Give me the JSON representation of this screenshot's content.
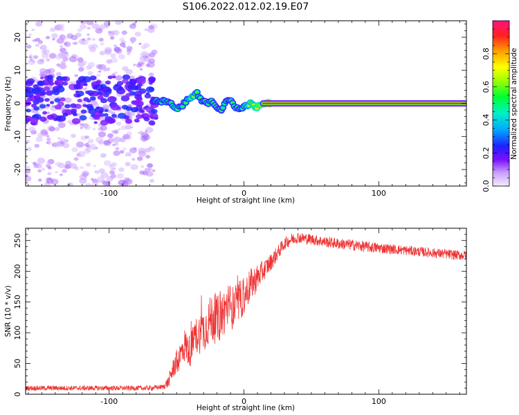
{
  "figure": {
    "title": "S106.2022.012.02.19.E07"
  },
  "chart_data": [
    {
      "type": "heatmap",
      "xlabel": "Height of straight line (km)",
      "ylabel": "Frequency (Hz)",
      "xlim": [
        -162,
        165
      ],
      "ylim": [
        -25,
        25
      ],
      "xticks": [
        -100,
        0,
        100
      ],
      "yticks": [
        -20,
        -10,
        0,
        10,
        20
      ],
      "colorbar": {
        "label": "Normalized spectral amplitude",
        "range": [
          0,
          1
        ],
        "ticks": [
          0.0,
          0.2,
          0.4,
          0.6,
          0.8
        ]
      },
      "signal_track": {
        "x": [
          -162,
          -150,
          -140,
          -130,
          -120,
          -110,
          -100,
          -90,
          -80,
          -70,
          -62,
          -58,
          -54,
          -50,
          -46,
          -42,
          -38,
          -35,
          -32,
          -28,
          -24,
          -20,
          -17,
          -14,
          -10,
          -6,
          -3,
          0,
          4,
          8,
          12,
          15,
          20,
          40,
          60,
          80,
          100,
          130,
          165
        ],
        "y": [
          1,
          2,
          -1,
          3,
          0,
          -2,
          1,
          3,
          -1,
          2,
          0,
          1,
          0,
          -2,
          -1,
          1,
          2,
          3,
          1,
          0,
          1,
          -1,
          -2,
          0,
          1,
          -1,
          -2,
          -1,
          0,
          -1,
          -1,
          0,
          0,
          0,
          0,
          0,
          0,
          0,
          0
        ],
        "strength": [
          0.22,
          0.22,
          0.22,
          0.22,
          0.22,
          0.22,
          0.22,
          0.22,
          0.22,
          0.25,
          0.5,
          0.6,
          0.55,
          0.65,
          0.55,
          0.6,
          0.7,
          0.6,
          0.6,
          0.55,
          0.6,
          0.55,
          0.5,
          0.6,
          0.55,
          0.6,
          0.55,
          0.6,
          0.7,
          0.75,
          0.8,
          0.95,
          1.0,
          1.0,
          1.0,
          1.0,
          1.0,
          1.0,
          1.0
        ]
      }
    },
    {
      "type": "line",
      "xlabel": "Height of straight line (km)",
      "ylabel": "SNR (10 * v/v)",
      "xlim": [
        -162,
        165
      ],
      "ylim": [
        0,
        270
      ],
      "xticks": [
        -100,
        0,
        100
      ],
      "yticks": [
        0,
        50,
        100,
        150,
        200,
        250
      ],
      "color": "#ee3333",
      "series": [
        {
          "x": [
            -162,
            -150,
            -140,
            -130,
            -120,
            -110,
            -100,
            -90,
            -80,
            -70,
            -60,
            -56,
            -52,
            -48,
            -44,
            -40,
            -36,
            -32,
            -28,
            -24,
            -20,
            -16,
            -12,
            -8,
            -4,
            0,
            4,
            8,
            12,
            16,
            20,
            25,
            30,
            35,
            40,
            50,
            60,
            70,
            80,
            90,
            100,
            110,
            120,
            130,
            140,
            150,
            160,
            165
          ],
          "values": [
            10,
            10,
            10,
            10,
            10,
            10,
            10,
            10,
            10,
            10,
            12,
            20,
            45,
            60,
            80,
            70,
            95,
            100,
            110,
            125,
            120,
            130,
            145,
            140,
            150,
            160,
            175,
            185,
            195,
            205,
            215,
            230,
            245,
            252,
            255,
            252,
            248,
            245,
            243,
            240,
            238,
            236,
            234,
            232,
            230,
            228,
            226,
            226
          ],
          "noise": [
            4,
            4,
            4,
            4,
            4,
            4,
            4,
            4,
            4,
            4,
            4,
            10,
            18,
            22,
            28,
            26,
            30,
            34,
            36,
            40,
            40,
            40,
            38,
            36,
            34,
            32,
            28,
            24,
            20,
            16,
            14,
            12,
            10,
            10,
            9,
            9,
            9,
            9,
            9,
            9,
            9,
            8,
            8,
            8,
            8,
            8,
            8,
            8
          ]
        }
      ]
    }
  ]
}
